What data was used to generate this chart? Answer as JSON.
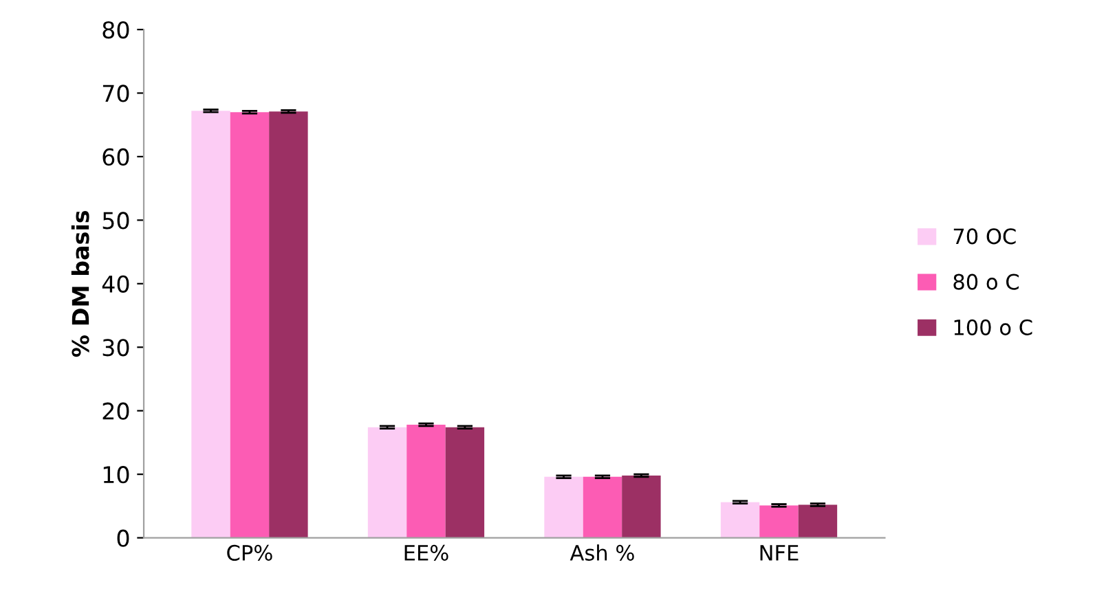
{
  "chart_data": {
    "type": "bar",
    "ylabel": "% DM basis",
    "categories": [
      "CP%",
      "EE%",
      "Ash %",
      "NFE"
    ],
    "series": [
      {
        "name": "70 OC",
        "color": "#fcccf4",
        "values": [
          67.2,
          17.4,
          9.6,
          5.6
        ],
        "errors": [
          0.2,
          0.2,
          0.2,
          0.2
        ]
      },
      {
        "name": "80 o C",
        "color": "#fc5cb4",
        "values": [
          67.0,
          17.8,
          9.6,
          5.1
        ],
        "errors": [
          0.2,
          0.2,
          0.2,
          0.2
        ]
      },
      {
        "name": "100 o C",
        "color": "#9c3064",
        "values": [
          67.1,
          17.4,
          9.8,
          5.2
        ],
        "errors": [
          0.2,
          0.2,
          0.2,
          0.2
        ]
      }
    ],
    "ylim": [
      0,
      80
    ],
    "yticks": [
      0,
      10,
      20,
      30,
      40,
      50,
      60,
      70,
      80
    ],
    "grid": false,
    "legend": "right"
  }
}
